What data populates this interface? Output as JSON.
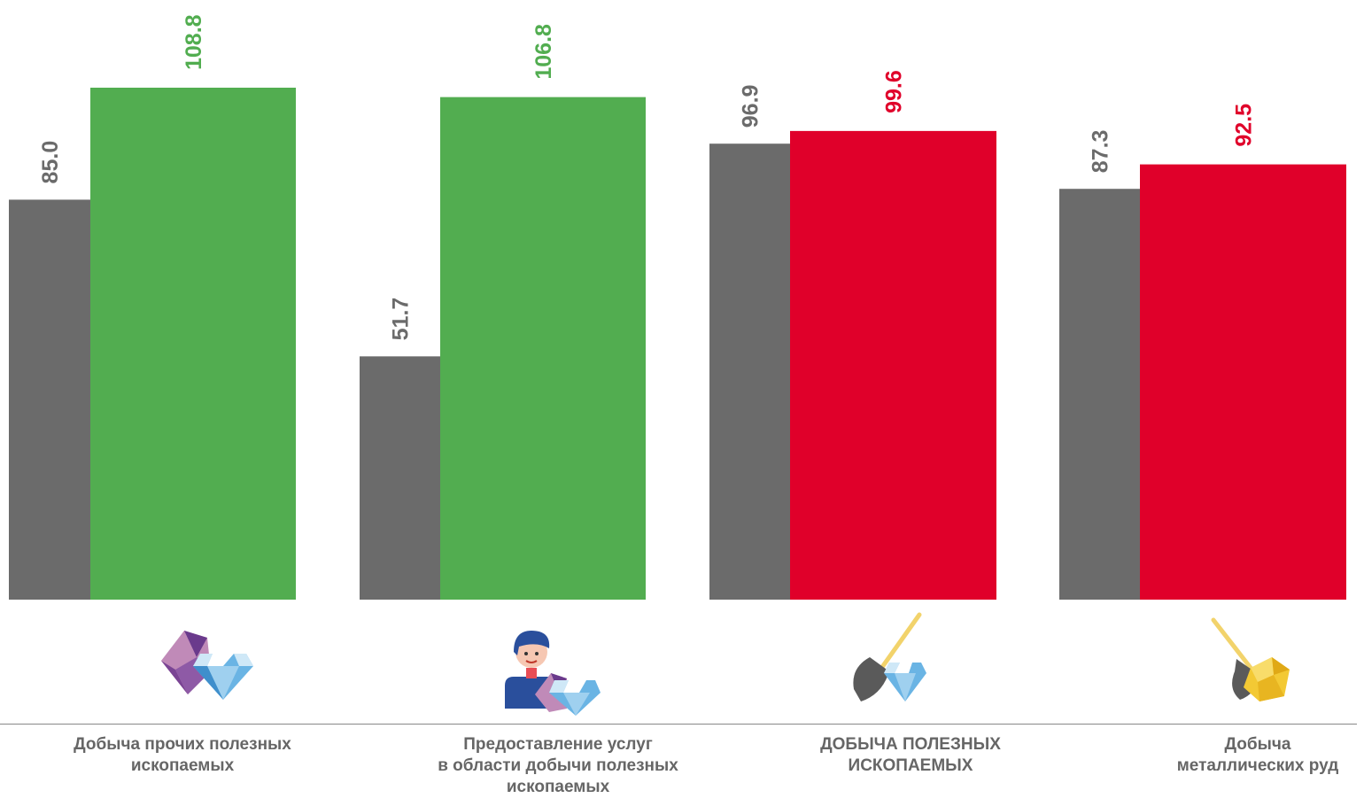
{
  "colors": {
    "previous": "#6b6b6b",
    "growth": "#52ad50",
    "decline": "#e0002a",
    "label_previous": "#6b6b6b",
    "category_text": "#666666"
  },
  "chart_data": {
    "type": "bar",
    "title": "",
    "xlabel": "",
    "ylabel": "",
    "ylim": [
      0,
      108.8
    ],
    "grid": false,
    "categories": [
      "Добыча прочих полезных\nископаемых",
      "Предоставление услуг\nв области добычи полезных\nископаемых",
      "ДОБЫЧА ПОЛЕЗНЫХ\nИСКОПАЕМЫХ",
      "Добыча\nметаллических руд"
    ],
    "series": [
      {
        "values": [
          85.0,
          51.7,
          96.9,
          87.3
        ],
        "labels": [
          "85.0",
          "51.7",
          "96.9",
          "87.3"
        ],
        "color": "#6b6b6b"
      },
      {
        "values": [
          108.8,
          106.8,
          99.6,
          92.5
        ],
        "labels": [
          "108.8",
          "106.8",
          "99.6",
          "92.5"
        ],
        "colors": [
          "#52ad50",
          "#52ad50",
          "#e0002a",
          "#e0002a"
        ]
      }
    ],
    "icons": [
      "minerals-gem-icon",
      "miner-worker-icon",
      "shovel-diamond-icon",
      "shovel-ore-icon"
    ]
  }
}
